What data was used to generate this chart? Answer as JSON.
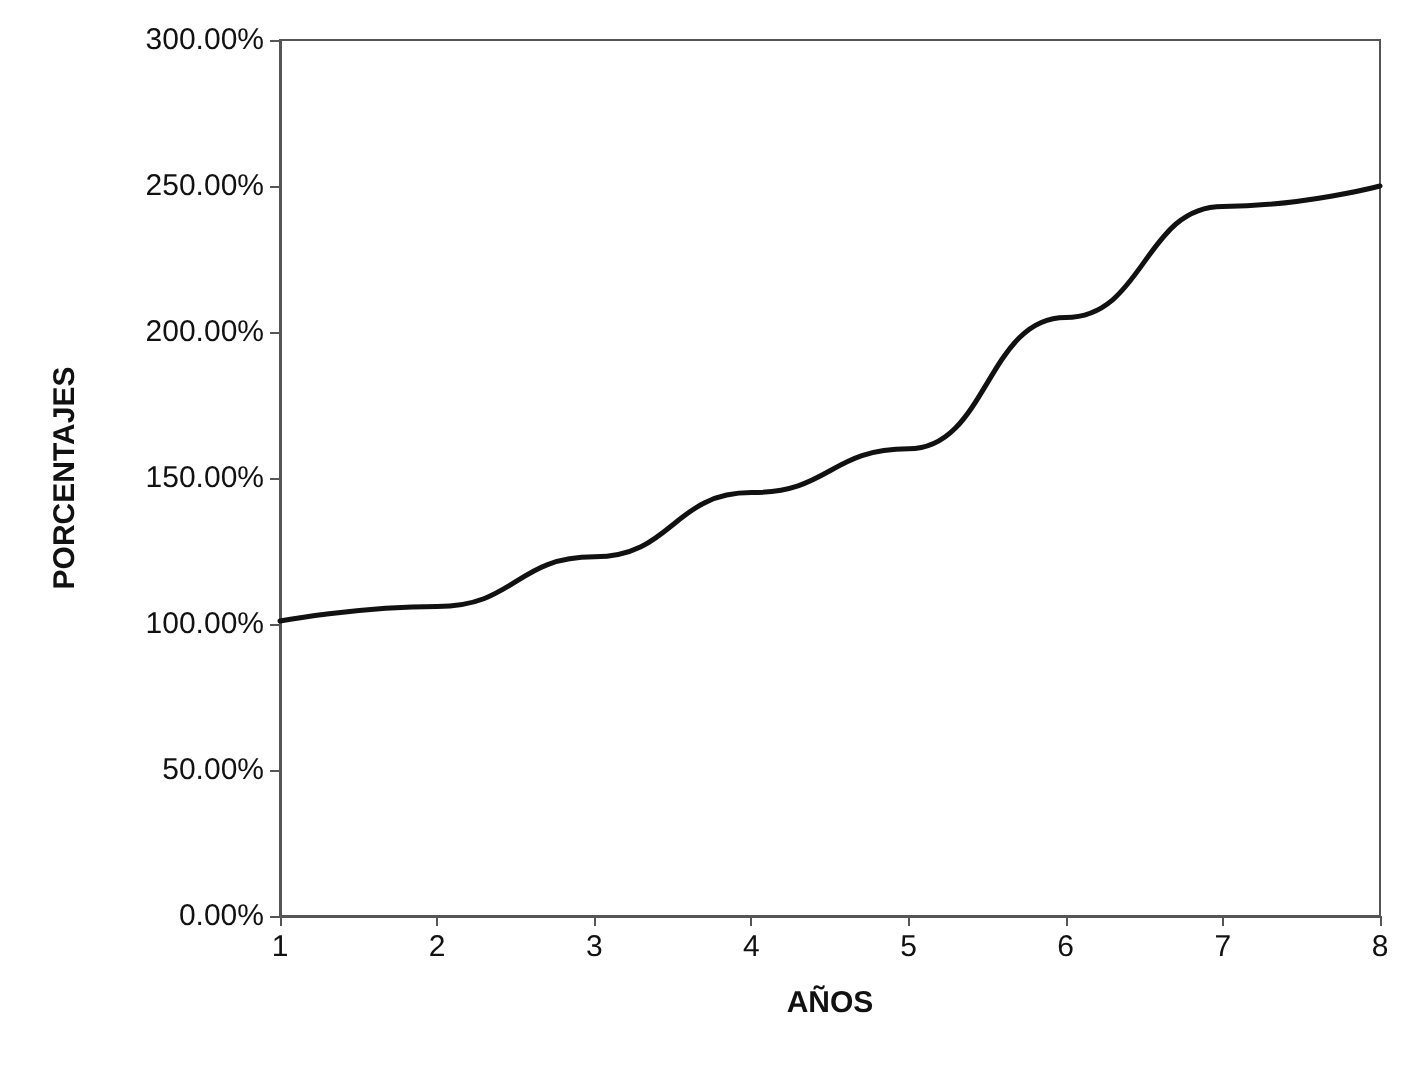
{
  "chart_data": {
    "type": "line",
    "xlabel": "AÑOS",
    "ylabel": "PORCENTAJES",
    "x": [
      1,
      2,
      3,
      4,
      5,
      6,
      7,
      8
    ],
    "series": [
      {
        "color": "#111111",
        "values": [
          101,
          106,
          123,
          145,
          160,
          205,
          243,
          250
        ]
      }
    ],
    "xlim": [
      1,
      8
    ],
    "xticks": [
      1,
      2,
      3,
      4,
      5,
      6,
      7,
      8
    ],
    "ylim": [
      0,
      300
    ],
    "yticks": [
      {
        "value": 0,
        "label": "0.00%"
      },
      {
        "value": 50,
        "label": "50.00%"
      },
      {
        "value": 100,
        "label": "100.00%"
      },
      {
        "value": 150,
        "label": "150.00%"
      },
      {
        "value": 200,
        "label": "200.00%"
      },
      {
        "value": 250,
        "label": "250.00%"
      },
      {
        "value": 300,
        "label": "300.00%"
      }
    ],
    "grid": false,
    "marker": "none",
    "line_style": "solid"
  }
}
